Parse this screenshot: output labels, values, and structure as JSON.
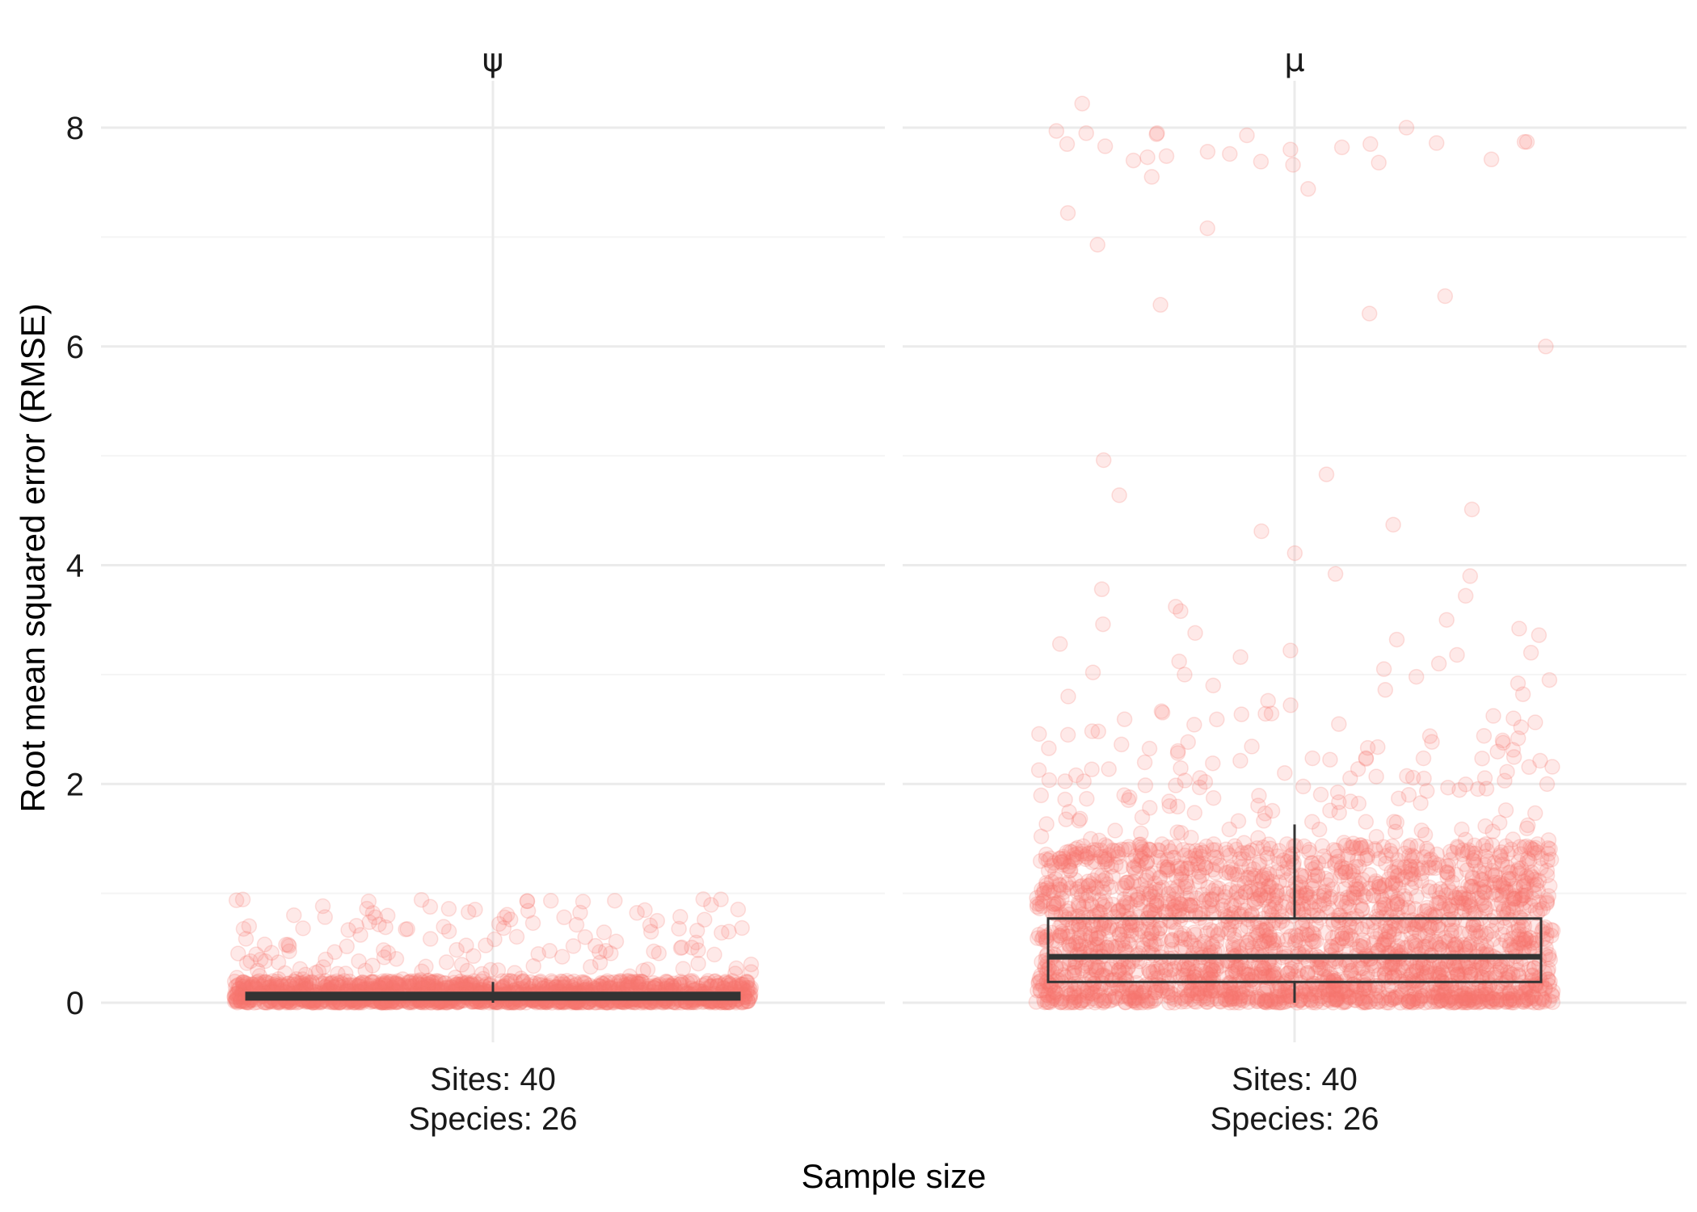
{
  "chart_data": {
    "type": "boxplot",
    "xlabel": "Sample size",
    "ylabel": "Root mean squared error (RMSE)",
    "ylim": [
      -0.4,
      8.55
    ],
    "yticks": [
      0,
      2,
      4,
      6,
      8
    ],
    "grid": true,
    "point_color": "#f8766d",
    "box_color": "#333333",
    "panels": [
      {
        "strip": "ψ",
        "category": [
          "Sites: 40",
          "Species: 26"
        ],
        "box": {
          "lower": 0.0,
          "q1": 0.03,
          "median": 0.06,
          "q3": 0.09,
          "upper": 0.19
        },
        "jitter": {
          "n": 1600,
          "body_max": 0.2,
          "tail_n": 140,
          "tail_max": 0.95
        },
        "outliers": [
          0.94,
          0.86,
          0.84,
          0.82,
          0.8,
          0.78,
          0.72,
          0.7,
          0.68,
          0.66,
          0.65,
          0.64,
          0.62,
          0.6,
          0.58,
          0.56,
          0.55,
          0.53,
          0.52,
          0.5,
          0.48,
          0.47,
          0.45,
          0.44,
          0.42,
          0.4,
          0.38,
          0.37,
          0.35,
          0.33,
          0.31,
          0.3
        ]
      },
      {
        "strip": "μ",
        "category": [
          "Sites: 40",
          "Species: 26"
        ],
        "box": {
          "lower": 0.0,
          "q1": 0.19,
          "median": 0.42,
          "q3": 0.77,
          "upper": 1.63
        },
        "jitter": {
          "n": 2400,
          "body_max": 1.45,
          "tail_n": 260,
          "tail_max": 2.7
        },
        "outliers": [
          8.22,
          8.0,
          7.97,
          7.95,
          7.95,
          7.94,
          7.93,
          7.87,
          7.87,
          7.86,
          7.85,
          7.85,
          7.83,
          7.82,
          7.8,
          7.78,
          7.76,
          7.74,
          7.73,
          7.71,
          7.7,
          7.69,
          7.68,
          7.66,
          7.55,
          7.44,
          7.22,
          7.08,
          6.93,
          6.46,
          6.38,
          6.3,
          6.0,
          4.96,
          4.83,
          4.64,
          4.51,
          4.37,
          4.31,
          4.11,
          3.92,
          3.9,
          3.78,
          3.72,
          3.62,
          3.58,
          3.5,
          3.46,
          3.42,
          3.38,
          3.36,
          3.32,
          3.28,
          3.22,
          3.2,
          3.18,
          3.16,
          3.12,
          3.1,
          3.05,
          3.02,
          3.0,
          2.98,
          2.95,
          2.92,
          2.9,
          2.86,
          2.82,
          2.8,
          2.76,
          2.72
        ]
      }
    ]
  }
}
